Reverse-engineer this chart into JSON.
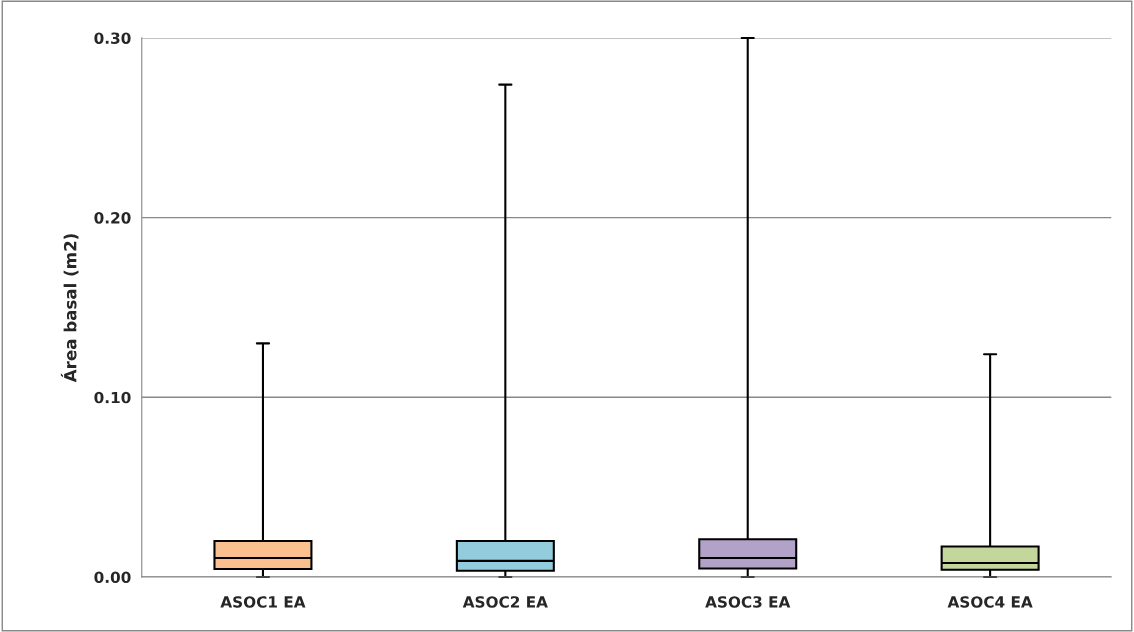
{
  "chart_data": {
    "type": "box",
    "ylabel": "Área basal (m2)",
    "categories": [
      "ASOC1 EA",
      "ASOC2 EA",
      "ASOC3 EA",
      "ASOC4 EA"
    ],
    "boxes": [
      {
        "low": 0.0,
        "q1": 0.0045,
        "median": 0.0106,
        "q3": 0.02,
        "high": 0.13
      },
      {
        "low": 0.0,
        "q1": 0.0035,
        "median": 0.009,
        "q3": 0.02,
        "high": 0.274
      },
      {
        "low": 0.0,
        "q1": 0.0047,
        "median": 0.0106,
        "q3": 0.021,
        "high": 0.3
      },
      {
        "low": 0.0,
        "q1": 0.004,
        "median": 0.0078,
        "q3": 0.017,
        "high": 0.124
      }
    ],
    "colors": [
      "#fac090",
      "#93cddd",
      "#b3a2c7",
      "#c3d69b"
    ],
    "ylim": [
      0,
      0.3
    ],
    "yticks": [
      {
        "value": 0,
        "label": "0.00"
      },
      {
        "value": 0.1,
        "label": "0.10"
      },
      {
        "value": 0.2,
        "label": "0.20"
      },
      {
        "value": 0.3,
        "label": "0.30"
      }
    ],
    "grid": "y",
    "legend": false
  }
}
